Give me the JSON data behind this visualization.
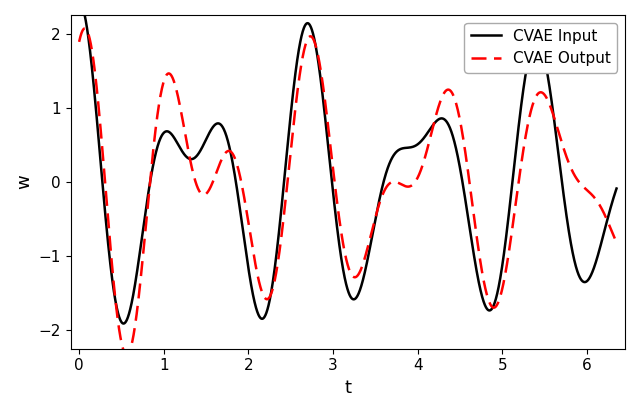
{
  "xlabel": "t",
  "ylabel": "w",
  "xlim": [
    -0.1,
    6.45
  ],
  "ylim": [
    -2.25,
    2.25
  ],
  "xticks": [
    0,
    1,
    2,
    3,
    4,
    5,
    6
  ],
  "yticks": [
    -2,
    -1,
    0,
    1,
    2
  ],
  "input_color": "#000000",
  "output_color": "#ff0000",
  "input_label": "CVAE Input",
  "output_label": "CVAE Output",
  "input_linewidth": 1.8,
  "output_linewidth": 1.8,
  "figsize": [
    6.4,
    4.12
  ],
  "dpi": 100,
  "legend_fontsize": 11,
  "axis_label_fontsize": 13,
  "tick_labelsize": 11
}
